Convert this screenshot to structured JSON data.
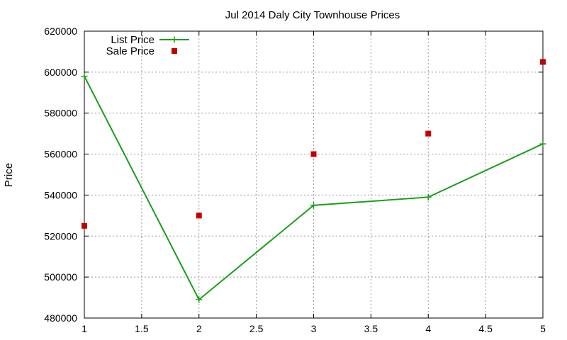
{
  "chart_data": {
    "type": "line",
    "title": "Jul 2014 Daly City Townhouse Prices",
    "xlabel": "",
    "ylabel": "Price",
    "xlim": [
      1,
      5
    ],
    "ylim": [
      480000,
      620000
    ],
    "xticks": [
      "1",
      "1.5",
      "2",
      "2.5",
      "3",
      "3.5",
      "4",
      "4.5",
      "5"
    ],
    "yticks": [
      "480000",
      "500000",
      "520000",
      "540000",
      "560000",
      "580000",
      "600000",
      "620000"
    ],
    "grid": true,
    "legend_position": "top-left",
    "series": [
      {
        "name": "List Price",
        "style": "linespoints",
        "color": "#1a9e1a",
        "x": [
          1,
          2,
          3,
          4,
          5
        ],
        "y": [
          598000,
          489000,
          535000,
          539000,
          565000
        ]
      },
      {
        "name": "Sale Price",
        "style": "points",
        "color": "#c00000",
        "x": [
          1,
          2,
          3,
          4,
          5
        ],
        "y": [
          525000,
          530000,
          560000,
          570000,
          605000
        ]
      }
    ]
  }
}
